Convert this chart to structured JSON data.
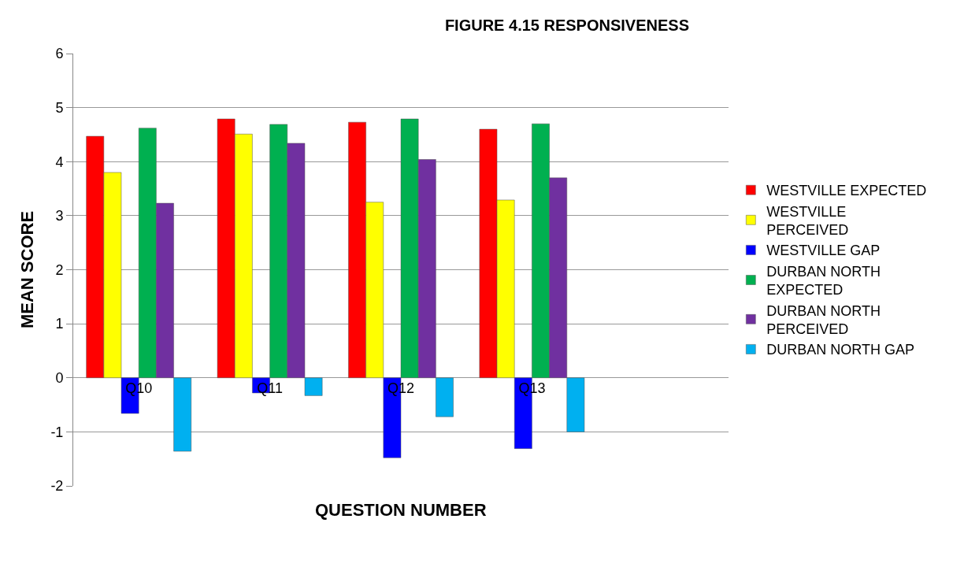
{
  "chart_data": {
    "type": "bar",
    "title": "FIGURE 4.15 RESPONSIVENESS",
    "xlabel": "QUESTION NUMBER",
    "ylabel": "MEAN SCORE",
    "categories": [
      "Q10",
      "Q11",
      "Q12",
      "Q13",
      null
    ],
    "series": [
      {
        "name": "WESTVILLE EXPECTED",
        "color": "#ff0000",
        "values": [
          4.47,
          4.79,
          4.73,
          4.6,
          null
        ]
      },
      {
        "name": "WESTVILLE PERCEIVED",
        "color": "#ffff00",
        "values": [
          3.8,
          4.51,
          3.25,
          3.29,
          null
        ]
      },
      {
        "name": "WESTVILLE GAP",
        "color": "#0000ff",
        "values": [
          -0.66,
          -0.28,
          -1.48,
          -1.31,
          null
        ]
      },
      {
        "name": "DURBAN NORTH EXPECTED",
        "color": "#00b050",
        "values": [
          4.62,
          4.69,
          4.79,
          4.7,
          null
        ]
      },
      {
        "name": "DURBAN NORTH PERCEIVED",
        "color": "#7030a0",
        "values": [
          3.23,
          4.34,
          4.04,
          3.7,
          null
        ]
      },
      {
        "name": "DURBAN NORTH GAP",
        "color": "#00b0f0",
        "values": [
          -1.36,
          -0.33,
          -0.72,
          -1.0,
          null
        ]
      }
    ],
    "ylim": [
      -2,
      6
    ],
    "yticks": [
      -2,
      -1,
      0,
      1,
      2,
      3,
      4,
      5,
      6
    ],
    "grid": "y",
    "legend": "right"
  }
}
